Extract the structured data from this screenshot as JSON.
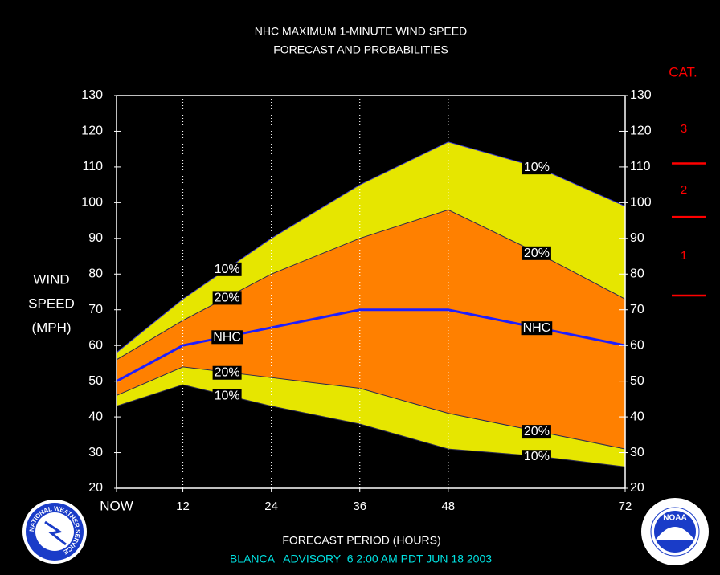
{
  "chart_data": {
    "type": "band",
    "title": [
      "NHC MAXIMUM 1-MINUTE WIND SPEED",
      "FORECAST AND PROBABILITIES"
    ],
    "ylabel": [
      "WIND",
      "SPEED",
      "(MPH)"
    ],
    "xlabel": "FORECAST PERIOD (HOURS)",
    "footer": "BLANCA   ADVISORY  6 2:00 AM PDT JUN 18 2003",
    "x": [
      3,
      12,
      24,
      36,
      48,
      60,
      72
    ],
    "xlim": [
      3,
      72
    ],
    "xticks": [
      {
        "value": 3,
        "label": "NOW"
      },
      12,
      24,
      36,
      48,
      72
    ],
    "ylim": [
      20,
      130
    ],
    "yticks": [
      20,
      30,
      40,
      50,
      60,
      70,
      80,
      90,
      100,
      110,
      120,
      130
    ],
    "y2lim": [
      20,
      130
    ],
    "y2ticks": [
      20,
      30,
      40,
      50,
      60,
      70,
      80,
      90,
      100,
      110,
      120,
      130
    ],
    "grid": true,
    "series": [
      {
        "name": "10%",
        "color": "#e6e600",
        "values": [
          58,
          73,
          90,
          105,
          117,
          110,
          99
        ]
      },
      {
        "name": "20%",
        "color": "#ff8000",
        "values": [
          56,
          67,
          80,
          90,
          98,
          86,
          73
        ]
      },
      {
        "name": "NHC",
        "color": "#1e1eff",
        "values": [
          50,
          60,
          65,
          70,
          70,
          65,
          60
        ]
      },
      {
        "name": "20%",
        "color": "#ff8000",
        "values": [
          46,
          54,
          51,
          48,
          41,
          36,
          31
        ]
      },
      {
        "name": "10%",
        "color": "#e6e600",
        "values": [
          43,
          49,
          43,
          38,
          31,
          29,
          26
        ]
      }
    ],
    "category_scale": {
      "title": "CAT.",
      "color": "#ff0000",
      "labels": [
        "3",
        "2",
        "1"
      ],
      "thresholds": [
        111,
        96,
        74
      ]
    },
    "logos": {
      "left": "NATIONAL WEATHER SERVICE",
      "right": "NOAA"
    }
  }
}
